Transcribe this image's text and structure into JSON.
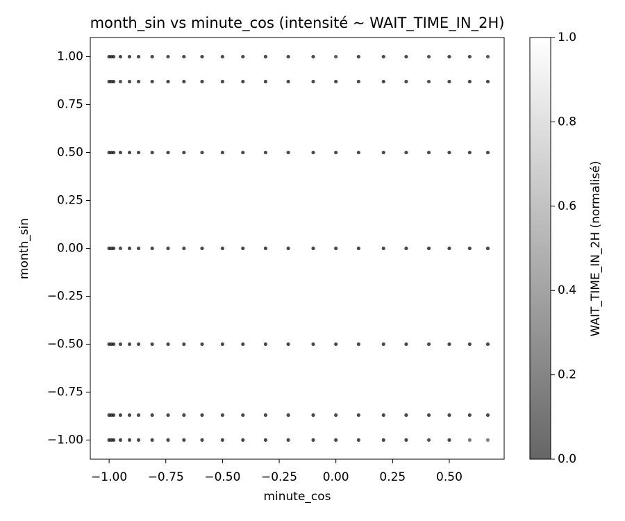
{
  "chart_data": {
    "type": "scatter",
    "title": "month_sin vs minute_cos (intensité ~ WAIT_TIME_IN_2H)",
    "xlabel": "minute_cos",
    "ylabel": "month_sin",
    "colorbar_label": "WAIT_TIME_IN_2H (normalisé)",
    "cmap": "gray",
    "xlim": [
      -1.083,
      0.742
    ],
    "ylim": [
      -1.1,
      1.1
    ],
    "clim": [
      0,
      1
    ],
    "xticks": [
      {
        "value": -1,
        "label": "−1.00"
      },
      {
        "value": -0.75,
        "label": "−0.75"
      },
      {
        "value": -0.5,
        "label": "−0.50"
      },
      {
        "value": -0.25,
        "label": "−0.25"
      },
      {
        "value": 0,
        "label": "0.00"
      },
      {
        "value": 0.25,
        "label": "0.25"
      },
      {
        "value": 0.5,
        "label": "0.50"
      }
    ],
    "yticks": [
      {
        "value": -1,
        "label": "−1.00"
      },
      {
        "value": -0.75,
        "label": "−0.75"
      },
      {
        "value": -0.5,
        "label": "−0.50"
      },
      {
        "value": -0.25,
        "label": "−0.25"
      },
      {
        "value": 0,
        "label": "0.00"
      },
      {
        "value": 0.25,
        "label": "0.25"
      },
      {
        "value": 0.5,
        "label": "0.50"
      },
      {
        "value": 0.75,
        "label": "0.75"
      },
      {
        "value": 1,
        "label": "1.00"
      }
    ],
    "cticks": [
      {
        "value": 0,
        "label": "0.0"
      },
      {
        "value": 0.2,
        "label": "0.2"
      },
      {
        "value": 0.4,
        "label": "0.4"
      },
      {
        "value": 0.6,
        "label": "0.6"
      },
      {
        "value": 0.8,
        "label": "0.8"
      },
      {
        "value": 1,
        "label": "1.0"
      }
    ],
    "x": [
      -1,
      -0.99,
      -0.98,
      -0.95,
      -0.91,
      -0.87,
      -0.81,
      -0.74,
      -0.67,
      -0.59,
      -0.5,
      -0.41,
      -0.31,
      -0.21,
      -0.1,
      0,
      0.1,
      0.21,
      0.31,
      0.41,
      0.5,
      0.59,
      0.67,
      -1,
      -0.99,
      -0.98,
      -0.95,
      -0.91,
      -0.87,
      -0.81,
      -0.74,
      -0.67,
      -0.59,
      -0.5,
      -0.41,
      -0.31,
      -0.21,
      -0.1,
      0,
      0.1,
      0.21,
      0.31,
      0.41,
      0.5,
      0.59,
      0.67,
      -1,
      -0.99,
      -0.98,
      -0.95,
      -0.91,
      -0.87,
      -0.81,
      -0.74,
      -0.67,
      -0.59,
      -0.5,
      -0.41,
      -0.31,
      -0.21,
      -0.1,
      0,
      0.1,
      0.21,
      0.31,
      0.41,
      0.5,
      0.59,
      0.67,
      -1,
      -0.99,
      -0.98,
      -0.95,
      -0.91,
      -0.87,
      -0.81,
      -0.74,
      -0.67,
      -0.59,
      -0.5,
      -0.41,
      -0.31,
      -0.21,
      -0.1,
      0,
      0.1,
      0.21,
      0.31,
      0.41,
      0.5,
      0.59,
      0.67,
      -1,
      -0.99,
      -0.98,
      -0.95,
      -0.91,
      -0.87,
      -0.81,
      -0.74,
      -0.67,
      -0.59,
      -0.5,
      -0.41,
      -0.31,
      -0.21,
      -0.1,
      0,
      0.1,
      0.21,
      0.31,
      0.41,
      0.5,
      0.59,
      0.67,
      -1,
      -0.99,
      -0.98,
      -0.95,
      -0.91,
      -0.87,
      -0.81,
      -0.74,
      -0.67,
      -0.59,
      -0.5,
      -0.41,
      -0.31,
      -0.21,
      -0.1,
      0,
      0.1,
      0.21,
      0.31,
      0.41,
      0.5,
      0.59,
      0.67,
      -1,
      -0.99,
      -0.98,
      -0.95,
      -0.91,
      -0.87,
      -0.81,
      -0.74,
      -0.67,
      -0.59,
      -0.5,
      -0.41,
      -0.31,
      -0.21,
      -0.1,
      0,
      0.1,
      0.21,
      0.31,
      0.41,
      0.5,
      0.59,
      0.67
    ],
    "y": [
      1,
      1,
      1,
      1,
      1,
      1,
      1,
      1,
      1,
      1,
      1,
      1,
      1,
      1,
      1,
      1,
      1,
      1,
      1,
      1,
      1,
      1,
      1,
      0.87,
      0.87,
      0.87,
      0.87,
      0.87,
      0.87,
      0.87,
      0.87,
      0.87,
      0.87,
      0.87,
      0.87,
      0.87,
      0.87,
      0.87,
      0.87,
      0.87,
      0.87,
      0.87,
      0.87,
      0.87,
      0.87,
      0.87,
      0.5,
      0.5,
      0.5,
      0.5,
      0.5,
      0.5,
      0.5,
      0.5,
      0.5,
      0.5,
      0.5,
      0.5,
      0.5,
      0.5,
      0.5,
      0.5,
      0.5,
      0.5,
      0.5,
      0.5,
      0.5,
      0.5,
      0.5,
      0,
      0,
      0,
      0,
      0,
      0,
      0,
      0,
      0,
      0,
      0,
      0,
      0,
      0,
      0,
      0,
      0,
      0,
      0,
      0,
      0,
      0,
      0,
      -0.5,
      -0.5,
      -0.5,
      -0.5,
      -0.5,
      -0.5,
      -0.5,
      -0.5,
      -0.5,
      -0.5,
      -0.5,
      -0.5,
      -0.5,
      -0.5,
      -0.5,
      -0.5,
      -0.5,
      -0.5,
      -0.5,
      -0.5,
      -0.5,
      -0.5,
      -0.5,
      -0.87,
      -0.87,
      -0.87,
      -0.87,
      -0.87,
      -0.87,
      -0.87,
      -0.87,
      -0.87,
      -0.87,
      -0.87,
      -0.87,
      -0.87,
      -0.87,
      -0.87,
      -0.87,
      -0.87,
      -0.87,
      -0.87,
      -0.87,
      -0.87,
      -0.87,
      -0.87,
      -1,
      -1,
      -1,
      -1,
      -1,
      -1,
      -1,
      -1,
      -1,
      -1,
      -1,
      -1,
      -1,
      -1,
      -1,
      -1,
      -1,
      -1,
      -1,
      -1,
      -1,
      -1,
      -1
    ],
    "intensity": [
      0.05,
      0.05,
      0.05,
      0.05,
      0.05,
      0.05,
      0.05,
      0.1,
      0.05,
      0.05,
      0.05,
      0.05,
      0.05,
      0.05,
      0.05,
      0.15,
      0.05,
      0.05,
      0.05,
      0.1,
      0.05,
      0.05,
      0.15,
      0.05,
      0.05,
      0.05,
      0.1,
      0.05,
      0.05,
      0.05,
      0.05,
      0.05,
      0.05,
      0.05,
      0.05,
      0.05,
      0.05,
      0.05,
      0.05,
      0.05,
      0.05,
      0.05,
      0.1,
      0.05,
      0.05,
      0.05,
      0.05,
      0.05,
      0.05,
      0.05,
      0.05,
      0.05,
      0.05,
      0.05,
      0.05,
      0.05,
      0.05,
      0.05,
      0.05,
      0.05,
      0.05,
      0.05,
      0.05,
      0.05,
      0.05,
      0.05,
      0.05,
      0.05,
      0.05,
      0.05,
      0.05,
      0.05,
      0.1,
      0.05,
      0.05,
      0.05,
      0.05,
      0.05,
      0.05,
      0.05,
      0.05,
      0.05,
      0.05,
      0.05,
      0.05,
      0.05,
      0.05,
      0.05,
      0.05,
      0.05,
      0.05,
      0.05,
      0.05,
      0.05,
      0.05,
      0.05,
      0.05,
      0.05,
      0.05,
      0.05,
      0.05,
      0.05,
      0.05,
      0.05,
      0.05,
      0.05,
      0.05,
      0.05,
      0.05,
      0.05,
      0.05,
      0.05,
      0.05,
      0.05,
      0.05,
      0.05,
      0.05,
      0.05,
      0.05,
      0.05,
      0.05,
      0.05,
      0.05,
      0.05,
      0.05,
      0.05,
      0.05,
      0.05,
      0.05,
      0.05,
      0.05,
      0.05,
      0.05,
      0.05,
      0.05,
      0.05,
      0.05,
      0.05,
      0.05,
      0.05,
      0.05,
      0.05,
      0.05,
      0.05,
      0.05,
      0.05,
      0.05,
      0.05,
      0.05,
      0.05,
      0.05,
      0.05,
      0.05,
      0.05,
      0.05,
      0.05,
      0.05,
      0.1,
      0.05,
      0.3,
      0.35
    ]
  }
}
